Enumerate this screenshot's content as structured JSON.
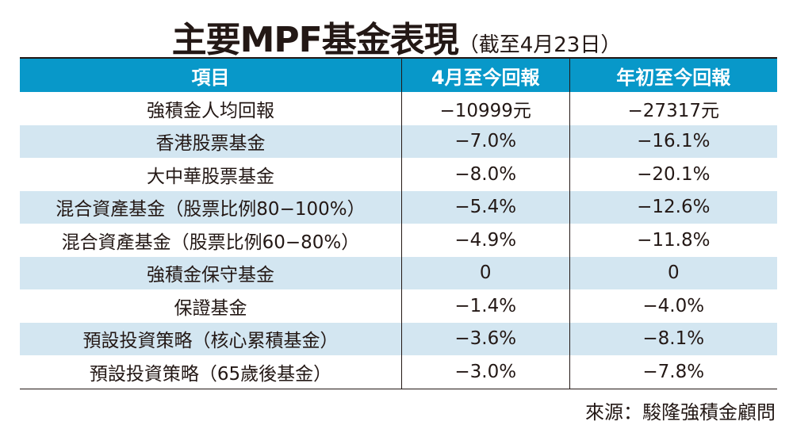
{
  "title": {
    "main": "主要MPF基金表現",
    "sub": "（截至4月23日）"
  },
  "colors": {
    "header": "#0898c9",
    "alt_row": "#d3e6f1"
  },
  "chart_data": {
    "type": "table",
    "title": "主要MPF基金表現（截至4月23日）",
    "columns": [
      "項目",
      "4月至今回報",
      "年初至今回報"
    ],
    "rows": [
      [
        "強積金人均回報",
        "−10999元",
        "−27317元"
      ],
      [
        "香港股票基金",
        "−7.0%",
        "−16.1%"
      ],
      [
        "大中華股票基金",
        "−8.0%",
        "−20.1%"
      ],
      [
        "混合資產基金（股票比例80−100%）",
        "−5.4%",
        "−12.6%"
      ],
      [
        "混合資產基金（股票比例60−80%）",
        "−4.9%",
        "−11.8%"
      ],
      [
        "強積金保守基金",
        "0",
        "0"
      ],
      [
        "保證基金",
        "−1.4%",
        "−4.0%"
      ],
      [
        "預設投資策略（核心累積基金）",
        "−3.6%",
        "−8.1%"
      ],
      [
        "預設投資策略（65歲後基金）",
        "−3.0%",
        "−7.8%"
      ]
    ]
  },
  "source": "來源：駿隆強積金顧問"
}
